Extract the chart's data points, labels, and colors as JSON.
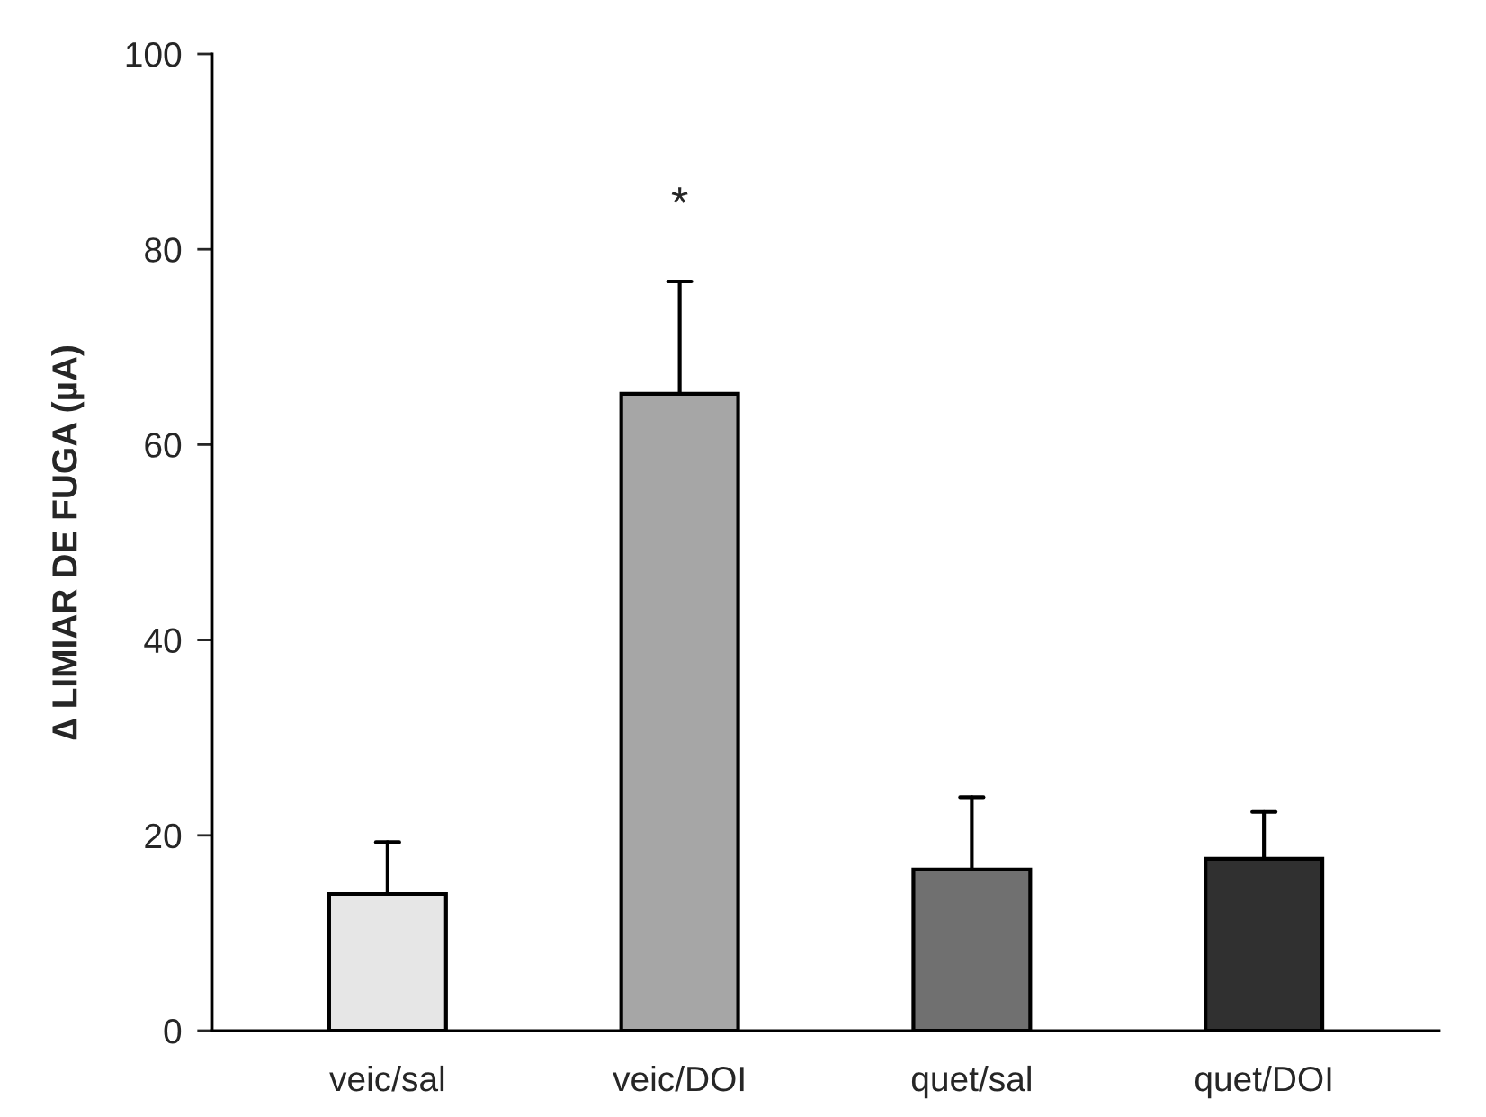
{
  "chart_data": {
    "type": "bar",
    "categories": [
      "veic/sal",
      "veic/DOI",
      "quet/sal",
      "quet/DOI"
    ],
    "values": [
      14.0,
      65.2,
      16.5,
      17.6
    ],
    "errors": [
      [
        14.0,
        19.3
      ],
      [
        65.2,
        76.7
      ],
      [
        16.5,
        23.9
      ],
      [
        17.6,
        22.4
      ]
    ],
    "colors": [
      "#e6e6e6",
      "#a6a6a6",
      "#707070",
      "#303030"
    ],
    "ylabel": "∆ LIMIAR DE FUGA (µA)",
    "ylim": [
      0,
      100
    ],
    "yticks": [
      0,
      20,
      40,
      60,
      80,
      100
    ],
    "annotations": [
      "*"
    ],
    "grid": false,
    "legend": false
  }
}
